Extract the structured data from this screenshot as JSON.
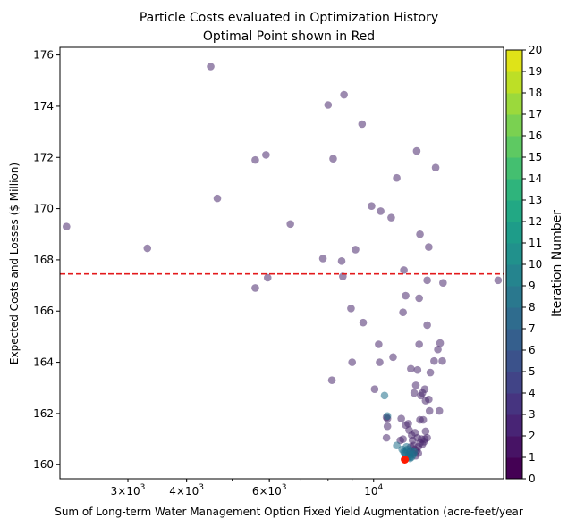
{
  "chart_data": {
    "type": "scatter",
    "title": "Particle Costs evaluated in Optimization History",
    "subtitle": "Optimal Point shown in Red",
    "xlabel": "Sum of Long-term Water Management Option Fixed Yield Augmentation (acre-feet/year",
    "ylabel": "Expected Costs and Losses ($ Million)",
    "xscale": "log",
    "xlim": [
      2150,
      18900
    ],
    "ylim": [
      159.45,
      176.3
    ],
    "x_ticks": [
      {
        "value": 3000,
        "base": "3",
        "exp": "3"
      },
      {
        "value": 4000,
        "base": "4",
        "exp": "3"
      },
      {
        "value": 6000,
        "base": "6",
        "exp": "3"
      },
      {
        "value": 10000,
        "base": "10",
        "exp": "4"
      }
    ],
    "y_ticks": [
      "160",
      "162",
      "164",
      "166",
      "168",
      "170",
      "172",
      "174",
      "176"
    ],
    "colorbar": {
      "label": "Iteration Number",
      "colormap": "viridis",
      "min": 0,
      "max": 20,
      "ticks": [
        "0",
        "1",
        "2",
        "3",
        "4",
        "5",
        "6",
        "7",
        "8",
        "9",
        "10",
        "11",
        "12",
        "13",
        "14",
        "15",
        "16",
        "17",
        "18",
        "19",
        "20"
      ]
    },
    "reference_line": {
      "y": 167.45,
      "x_from": 2150,
      "x_to": 18900,
      "color": "#e31a1c",
      "style": "dashed"
    },
    "optimal_point": {
      "x": 11650,
      "y": 160.2,
      "color": "#ff1a00"
    },
    "point_colors": {
      "early": "#4b2a6e",
      "late": "#1f6f8b",
      "alpha": 0.55
    },
    "points_early": [
      [
        2220,
        169.3
      ],
      [
        3300,
        168.45
      ],
      [
        4500,
        175.55
      ],
      [
        4650,
        170.4
      ],
      [
        5600,
        171.9
      ],
      [
        5900,
        172.1
      ],
      [
        5600,
        166.9
      ],
      [
        5950,
        167.3
      ],
      [
        6650,
        169.4
      ],
      [
        7800,
        168.05
      ],
      [
        8000,
        174.05
      ],
      [
        8200,
        171.95
      ],
      [
        8550,
        167.95
      ],
      [
        8600,
        167.35
      ],
      [
        8650,
        174.45
      ],
      [
        8950,
        166.1
      ],
      [
        9000,
        164.0
      ],
      [
        9150,
        168.4
      ],
      [
        9450,
        173.3
      ],
      [
        9500,
        165.55
      ],
      [
        9900,
        170.1
      ],
      [
        10350,
        169.9
      ],
      [
        10250,
        164.7
      ],
      [
        10300,
        164.0
      ],
      [
        8150,
        163.3
      ],
      [
        10900,
        169.65
      ],
      [
        11200,
        171.2
      ],
      [
        11600,
        167.6
      ],
      [
        11700,
        166.6
      ],
      [
        11550,
        165.95
      ],
      [
        12350,
        172.25
      ],
      [
        12550,
        169.0
      ],
      [
        12500,
        166.5
      ],
      [
        12500,
        164.7
      ],
      [
        13100,
        168.5
      ],
      [
        13000,
        167.2
      ],
      [
        13000,
        165.45
      ],
      [
        13550,
        171.6
      ],
      [
        13850,
        164.75
      ],
      [
        13700,
        164.5
      ],
      [
        14000,
        164.05
      ],
      [
        13800,
        162.1
      ],
      [
        14050,
        167.1
      ],
      [
        18400,
        167.2
      ],
      [
        13200,
        163.6
      ],
      [
        13450,
        164.05
      ],
      [
        10050,
        162.95
      ],
      [
        11000,
        164.2
      ],
      [
        12000,
        163.75
      ],
      [
        12400,
        163.7
      ],
      [
        12300,
        163.1
      ],
      [
        12700,
        162.8
      ],
      [
        12850,
        162.95
      ],
      [
        12900,
        162.5
      ],
      [
        13100,
        162.55
      ],
      [
        13150,
        162.1
      ],
      [
        12600,
        162.7
      ],
      [
        12200,
        162.8
      ],
      [
        12550,
        161.75
      ],
      [
        12750,
        161.75
      ],
      [
        12900,
        161.3
      ],
      [
        13000,
        161.05
      ],
      [
        11450,
        161.8
      ],
      [
        11850,
        161.6
      ],
      [
        11700,
        161.55
      ],
      [
        10650,
        161.85
      ],
      [
        10700,
        161.8
      ],
      [
        10700,
        161.5
      ],
      [
        10650,
        161.05
      ],
      [
        11900,
        161.35
      ],
      [
        11550,
        161.0
      ],
      [
        11400,
        160.95
      ],
      [
        12050,
        161.15
      ],
      [
        12250,
        161.25
      ],
      [
        12400,
        161.05
      ],
      [
        12550,
        160.85
      ],
      [
        12450,
        160.7
      ],
      [
        12650,
        161.0
      ],
      [
        12700,
        160.8
      ],
      [
        12800,
        160.9
      ],
      [
        12850,
        161.0
      ],
      [
        12150,
        160.75
      ],
      [
        12000,
        160.7
      ],
      [
        11950,
        160.5
      ],
      [
        12100,
        160.95
      ],
      [
        12250,
        160.6
      ],
      [
        12350,
        160.55
      ],
      [
        12100,
        160.45
      ],
      [
        12450,
        160.45
      ],
      [
        12300,
        160.35
      ]
    ],
    "points_late": [
      [
        10550,
        162.7
      ],
      [
        10700,
        161.9
      ],
      [
        11200,
        160.75
      ],
      [
        11500,
        160.6
      ],
      [
        11750,
        160.55
      ],
      [
        11900,
        160.4
      ],
      [
        11950,
        160.3
      ],
      [
        12050,
        160.3
      ],
      [
        11850,
        160.3
      ],
      [
        11700,
        160.35
      ],
      [
        12150,
        160.4
      ],
      [
        11800,
        160.6
      ],
      [
        11650,
        160.45
      ],
      [
        11600,
        160.5
      ],
      [
        12000,
        160.55
      ],
      [
        12200,
        160.5
      ],
      [
        11750,
        160.7
      ],
      [
        11950,
        160.25
      ]
    ]
  }
}
